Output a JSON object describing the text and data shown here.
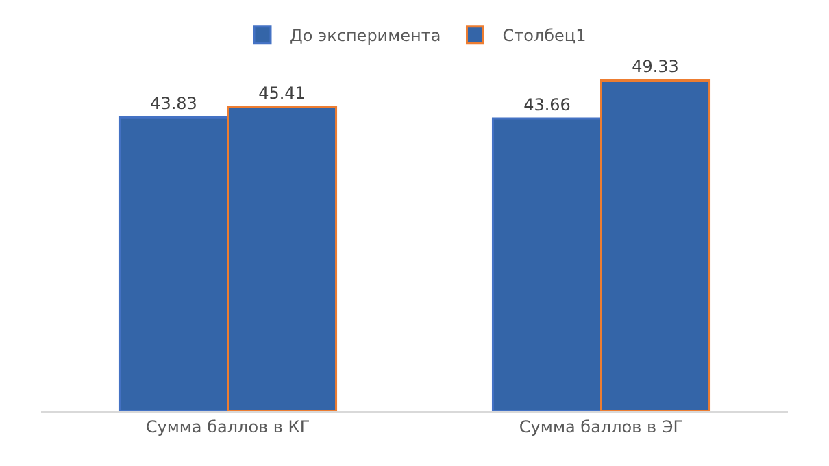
{
  "chart_data": {
    "type": "bar",
    "categories": [
      "Сумма баллов в КГ",
      "Сумма баллов в ЭГ"
    ],
    "series": [
      {
        "name": "До эксперимента",
        "color": "#3465a8",
        "values": [
          43.83,
          43.66
        ]
      },
      {
        "name": "Столбец1",
        "color": "#3465a8",
        "values": [
          45.41,
          49.33
        ]
      }
    ],
    "data_labels": true,
    "legend": "top"
  }
}
